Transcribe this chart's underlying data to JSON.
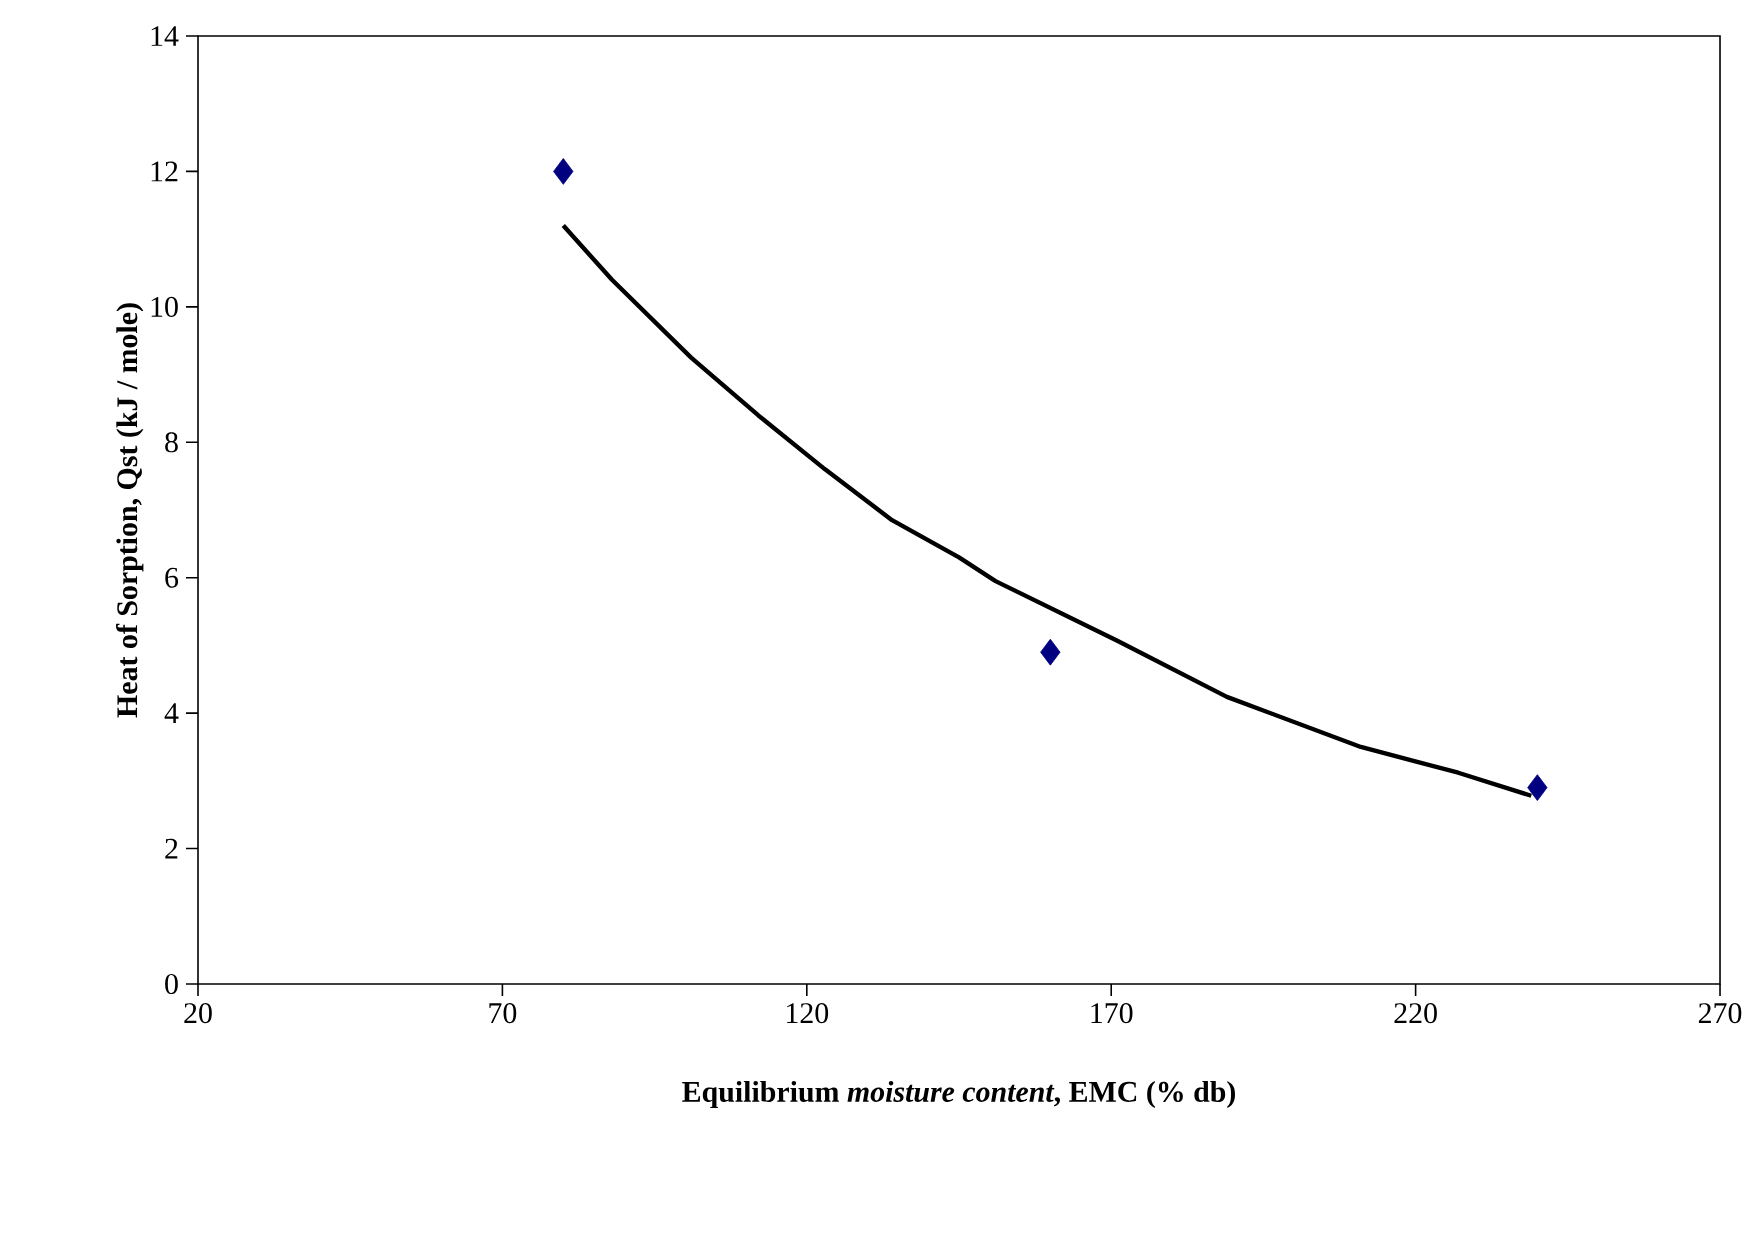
{
  "chart_data": {
    "type": "scatter",
    "xlabel": "Equilibrium *moisture content*, EMC (% db)",
    "ylabel": "Heat of Sorption, Qst (kJ / mole)",
    "xlim": [
      20,
      270
    ],
    "xticks": [
      20,
      70,
      120,
      170,
      220,
      270
    ],
    "ylim": [
      0,
      14
    ],
    "yticks": [
      0,
      2,
      4,
      6,
      8,
      10,
      12,
      14
    ],
    "marker": "diamond",
    "series": [
      {
        "color": "#000080",
        "x": [
          80,
          160,
          240
        ],
        "values": [
          12,
          4.9,
          2.9
        ]
      },
      {
        "type": "line",
        "color": "#000000",
        "marker": "none",
        "line_style": "solid",
        "x": [
          80,
          88,
          101,
          112,
          123,
          134,
          145,
          151,
          171,
          189,
          211,
          227,
          239
        ],
        "values": [
          11.2,
          10.4,
          9.25,
          8.4,
          7.6,
          6.85,
          6.3,
          5.95,
          5.07,
          4.24,
          3.5,
          3.12,
          2.78
        ]
      }
    ]
  }
}
